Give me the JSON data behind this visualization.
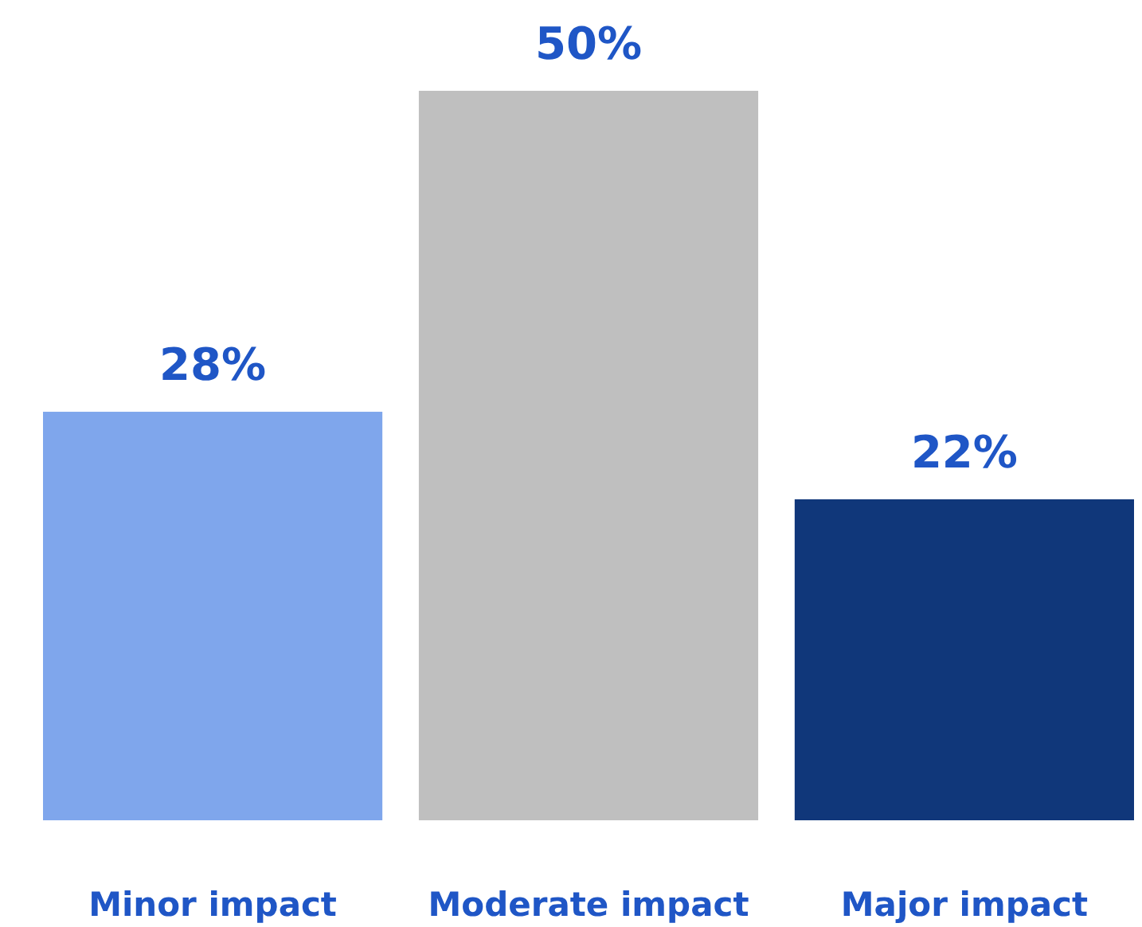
{
  "chart_data": {
    "type": "bar",
    "categories": [
      "Minor impact",
      "Moderate impact",
      "Major impact"
    ],
    "values": [
      28,
      50,
      22
    ],
    "colors": [
      "#7fa6ec",
      "#bfbfbf",
      "#10377a"
    ],
    "value_labels": [
      "28%",
      "50%",
      "22%"
    ]
  }
}
